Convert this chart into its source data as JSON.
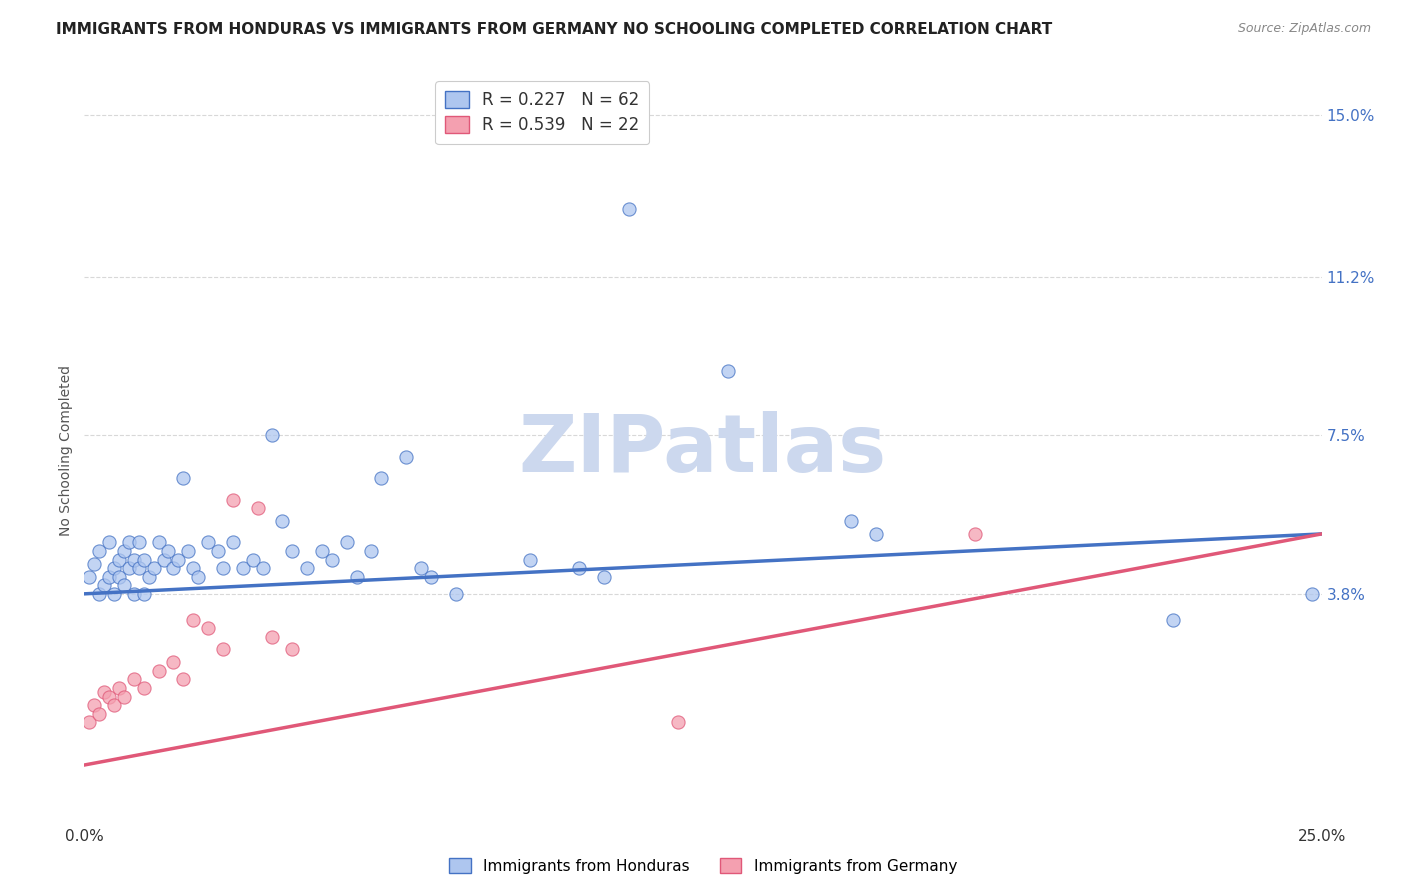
{
  "title": "IMMIGRANTS FROM HONDURAS VS IMMIGRANTS FROM GERMANY NO SCHOOLING COMPLETED CORRELATION CHART",
  "source": "Source: ZipAtlas.com",
  "ylabel": "No Schooling Completed",
  "xlim": [
    0.0,
    0.25
  ],
  "ylim": [
    -0.015,
    0.158
  ],
  "xticks": [
    0.0,
    0.05,
    0.1,
    0.15,
    0.2,
    0.25
  ],
  "xticklabels": [
    "0.0%",
    "",
    "",
    "",
    "",
    "25.0%"
  ],
  "ytick_labels_right": [
    "15.0%",
    "11.2%",
    "7.5%",
    "3.8%"
  ],
  "ytick_vals_right": [
    0.15,
    0.112,
    0.075,
    0.038
  ],
  "legend1_label": "R = 0.227   N = 62",
  "legend2_label": "R = 0.539   N = 22",
  "legend1_color": "#aec6ef",
  "legend2_color": "#f4a0b0",
  "line1_color": "#4472c4",
  "line2_color": "#e05878",
  "watermark_zip_color": "#ccd8ee",
  "watermark_atlas_color": "#ccd8ee",
  "background_color": "#ffffff",
  "grid_color": "#d8d8d8",
  "title_fontsize": 11,
  "axis_label_fontsize": 10,
  "tick_fontsize": 11,
  "line1_x0": 0.0,
  "line1_y0": 0.038,
  "line1_x1": 0.25,
  "line1_y1": 0.052,
  "line2_x0": 0.0,
  "line2_y0": -0.002,
  "line2_x1": 0.25,
  "line2_y1": 0.052,
  "honduras_x": [
    0.001,
    0.002,
    0.003,
    0.003,
    0.004,
    0.005,
    0.005,
    0.006,
    0.006,
    0.007,
    0.007,
    0.008,
    0.008,
    0.009,
    0.009,
    0.01,
    0.01,
    0.011,
    0.011,
    0.012,
    0.012,
    0.013,
    0.014,
    0.015,
    0.016,
    0.017,
    0.018,
    0.019,
    0.02,
    0.021,
    0.022,
    0.023,
    0.025,
    0.027,
    0.028,
    0.03,
    0.032,
    0.034,
    0.036,
    0.038,
    0.04,
    0.042,
    0.045,
    0.048,
    0.05,
    0.053,
    0.055,
    0.058,
    0.06,
    0.065,
    0.068,
    0.07,
    0.075,
    0.09,
    0.1,
    0.105,
    0.11,
    0.13,
    0.155,
    0.16,
    0.22,
    0.248
  ],
  "honduras_y": [
    0.042,
    0.045,
    0.048,
    0.038,
    0.04,
    0.05,
    0.042,
    0.044,
    0.038,
    0.046,
    0.042,
    0.048,
    0.04,
    0.044,
    0.05,
    0.046,
    0.038,
    0.044,
    0.05,
    0.046,
    0.038,
    0.042,
    0.044,
    0.05,
    0.046,
    0.048,
    0.044,
    0.046,
    0.065,
    0.048,
    0.044,
    0.042,
    0.05,
    0.048,
    0.044,
    0.05,
    0.044,
    0.046,
    0.044,
    0.075,
    0.055,
    0.048,
    0.044,
    0.048,
    0.046,
    0.05,
    0.042,
    0.048,
    0.065,
    0.07,
    0.044,
    0.042,
    0.038,
    0.046,
    0.044,
    0.042,
    0.128,
    0.09,
    0.055,
    0.052,
    0.032,
    0.038
  ],
  "germany_x": [
    0.001,
    0.002,
    0.003,
    0.004,
    0.005,
    0.006,
    0.007,
    0.008,
    0.01,
    0.012,
    0.015,
    0.018,
    0.02,
    0.022,
    0.025,
    0.028,
    0.03,
    0.035,
    0.038,
    0.042,
    0.12,
    0.18
  ],
  "germany_y": [
    0.008,
    0.012,
    0.01,
    0.015,
    0.014,
    0.012,
    0.016,
    0.014,
    0.018,
    0.016,
    0.02,
    0.022,
    0.018,
    0.032,
    0.03,
    0.025,
    0.06,
    0.058,
    0.028,
    0.025,
    0.008,
    0.052
  ],
  "legend_x_labels": [
    "Immigrants from Honduras",
    "Immigrants from Germany"
  ]
}
